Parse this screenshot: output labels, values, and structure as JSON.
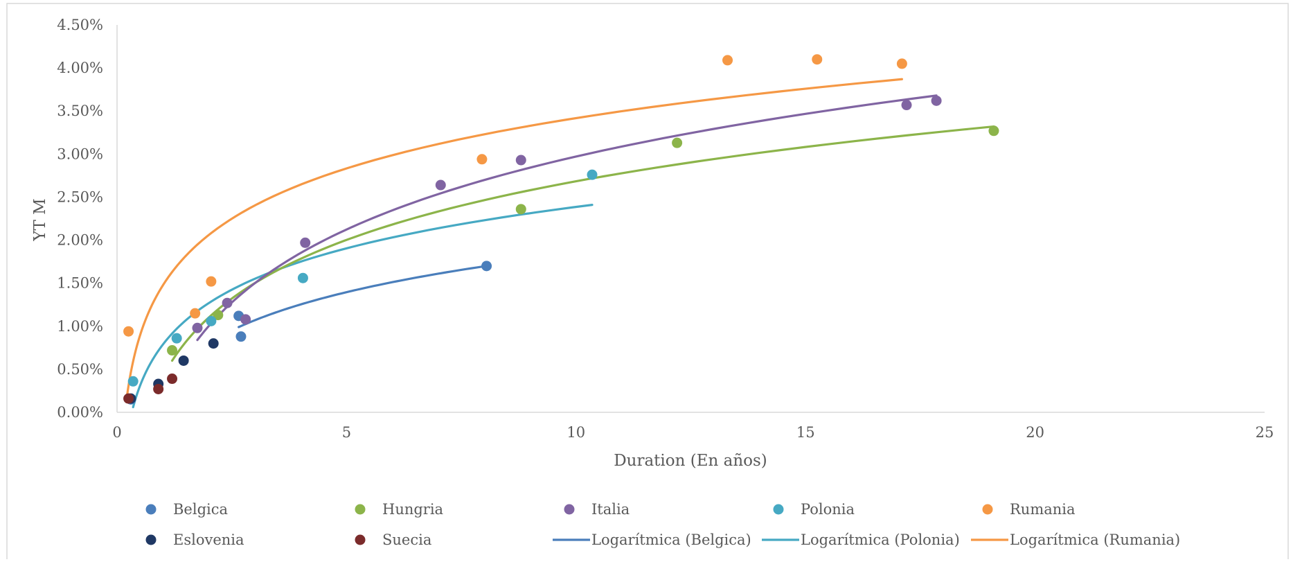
{
  "chart_data": {
    "type": "scatter",
    "xlabel": "Duration (En años)",
    "ylabel": "YT M",
    "xlim": [
      0,
      25
    ],
    "ylim": [
      0,
      0.045
    ],
    "x_ticks": [
      0,
      5,
      10,
      15,
      20,
      25
    ],
    "x_tick_labels": [
      "0",
      "5",
      "10",
      "15",
      "20",
      "25"
    ],
    "y_ticks": [
      0,
      0.005,
      0.01,
      0.015,
      0.02,
      0.025,
      0.03,
      0.035,
      0.04,
      0.045
    ],
    "y_tick_labels": [
      "0.00%",
      "0.50%",
      "1.00%",
      "1.50%",
      "2.00%",
      "2.50%",
      "3.00%",
      "3.50%",
      "4.00%",
      "4.50%"
    ],
    "grid": false,
    "legend_position": "bottom",
    "series": [
      {
        "name": "Belgica",
        "color": "#4a7ebb",
        "points": [
          [
            0.3,
            0.0015
          ],
          [
            2.65,
            0.0112
          ],
          [
            2.7,
            0.0088
          ],
          [
            8.05,
            0.017
          ]
        ]
      },
      {
        "name": "Hungria",
        "color": "#8cb44a",
        "points": [
          [
            1.2,
            0.0072
          ],
          [
            2.2,
            0.0113
          ],
          [
            8.8,
            0.0236
          ],
          [
            12.2,
            0.0313
          ],
          [
            19.1,
            0.0327
          ]
        ]
      },
      {
        "name": "Italia",
        "color": "#8064a2",
        "points": [
          [
            1.75,
            0.0098
          ],
          [
            2.4,
            0.0127
          ],
          [
            2.8,
            0.0108
          ],
          [
            4.1,
            0.0197
          ],
          [
            7.05,
            0.0264
          ],
          [
            8.8,
            0.0293
          ],
          [
            17.2,
            0.0357
          ],
          [
            17.85,
            0.0362
          ]
        ]
      },
      {
        "name": "Polonia",
        "color": "#46a9c3",
        "points": [
          [
            0.35,
            0.0036
          ],
          [
            1.3,
            0.0086
          ],
          [
            2.05,
            0.0106
          ],
          [
            4.05,
            0.0156
          ],
          [
            10.35,
            0.0276
          ]
        ]
      },
      {
        "name": "Rumania",
        "color": "#f59845",
        "points": [
          [
            0.25,
            0.0094
          ],
          [
            1.7,
            0.0115
          ],
          [
            2.05,
            0.0152
          ],
          [
            7.95,
            0.0294
          ],
          [
            13.3,
            0.0409
          ],
          [
            15.25,
            0.041
          ],
          [
            17.1,
            0.0405
          ]
        ]
      },
      {
        "name": "Eslovenia",
        "color": "#1f3864",
        "points": [
          [
            0.3,
            0.0016
          ],
          [
            0.9,
            0.0033
          ],
          [
            1.45,
            0.006
          ],
          [
            2.1,
            0.008
          ]
        ]
      },
      {
        "name": "Suecia",
        "color": "#7b2b2b",
        "points": [
          [
            0.25,
            0.0016
          ],
          [
            0.9,
            0.0027
          ],
          [
            1.2,
            0.0039
          ]
        ]
      }
    ],
    "trendlines": [
      {
        "name": "Logarítmica (Belgica)",
        "color": "#4a7ebb",
        "type": "logarithmic",
        "x_range": [
          2.65,
          8.05
        ],
        "y_at_start": 0.0099,
        "y_at_end": 0.017
      },
      {
        "name": "Logarítmica (Polonia)",
        "color": "#46a9c3",
        "type": "logarithmic",
        "x_range": [
          0.35,
          10.35
        ],
        "y_at_start": 0.0006,
        "y_at_end": 0.0241
      },
      {
        "name": "Logarítmica (Rumania)",
        "color": "#f59845",
        "type": "logarithmic",
        "x_range": [
          0.2,
          17.1
        ],
        "y_at_start": 0.0012,
        "y_at_end": 0.0387
      },
      {
        "name": "",
        "color": "#8cb44a",
        "type": "logarithmic",
        "x_range": [
          1.2,
          19.1
        ],
        "y_at_start": 0.006,
        "y_at_end": 0.0332
      },
      {
        "name": "",
        "color": "#8064a2",
        "type": "logarithmic",
        "x_range": [
          1.75,
          17.85
        ],
        "y_at_start": 0.0084,
        "y_at_end": 0.0368
      }
    ],
    "legend": [
      {
        "label": "Belgica",
        "kind": "marker",
        "color": "#4a7ebb"
      },
      {
        "label": "Hungria",
        "kind": "marker",
        "color": "#8cb44a"
      },
      {
        "label": "Italia",
        "kind": "marker",
        "color": "#8064a2"
      },
      {
        "label": "Polonia",
        "kind": "marker",
        "color": "#46a9c3"
      },
      {
        "label": "Rumania",
        "kind": "marker",
        "color": "#f59845"
      },
      {
        "label": "Eslovenia",
        "kind": "marker",
        "color": "#1f3864"
      },
      {
        "label": "Suecia",
        "kind": "marker",
        "color": "#7b2b2b"
      },
      {
        "label": "Logarítmica (Belgica)",
        "kind": "line",
        "color": "#4a7ebb"
      },
      {
        "label": "Logarítmica (Polonia)",
        "kind": "line",
        "color": "#46a9c3"
      },
      {
        "label": "Logarítmica (Rumania)",
        "kind": "line",
        "color": "#f59845"
      }
    ]
  }
}
